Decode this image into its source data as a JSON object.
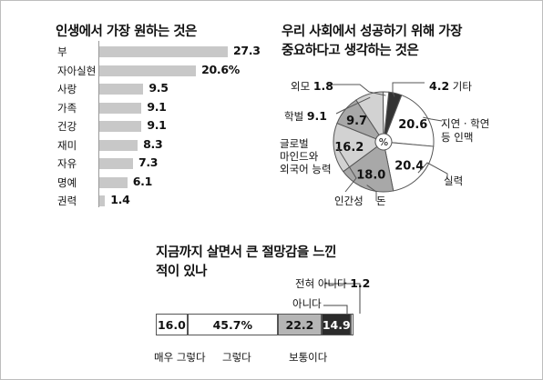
{
  "chart_data": [
    {
      "type": "bar",
      "orientation": "horizontal",
      "title": "인생에서 가장 원하는 것은",
      "categories": [
        "부",
        "자아실현",
        "사랑",
        "가족",
        "건강",
        "재미",
        "자유",
        "명예",
        "권력"
      ],
      "values": [
        27.3,
        20.6,
        9.5,
        9.1,
        9.1,
        8.3,
        7.3,
        6.1,
        1.4
      ],
      "value_labels": [
        "27.3",
        "20.6%",
        "9.5",
        "9.1",
        "9.1",
        "8.3",
        "7.3",
        "6.1",
        "1.4"
      ],
      "xlim": [
        0,
        30
      ],
      "bar_color": "#c8c8c8"
    },
    {
      "type": "pie",
      "style": "donut",
      "title_lines": [
        "우리 사회에서 성공하기 위해 가장",
        "중요하다고 생각하는 것은"
      ],
      "center_label": "%",
      "slices": [
        {
          "label": [
            "4.2 기타"
          ],
          "value": 4.2,
          "text": "",
          "color": "#333333"
        },
        {
          "label": [
            "지연 · 학연",
            "등 인맥"
          ],
          "value": 20.6,
          "text": "20.6",
          "color": "#ffffff"
        },
        {
          "label": [
            "실력"
          ],
          "value": 20.4,
          "text": "20.4",
          "color": "#ffffff"
        },
        {
          "label": [
            "돈"
          ],
          "value": 18.0,
          "text": "18.0",
          "color": "#a8a8a8"
        },
        {
          "label": [
            "인간성"
          ],
          "value": 16.2,
          "text": "16.2",
          "color": "#d2d2d2"
        },
        {
          "label": [
            "글로벌",
            "마인드와",
            "외국어 능력"
          ],
          "value": 9.7,
          "text": "9.7",
          "color": "#a8a8a8"
        },
        {
          "label": [
            "학벌 9.1"
          ],
          "value": 9.1,
          "text": "",
          "color": "#d2d2d2"
        },
        {
          "label": [
            "외모 1.8"
          ],
          "value": 1.8,
          "text": "",
          "color": "#ffffff"
        }
      ]
    },
    {
      "type": "bar",
      "orientation": "stacked-horizontal",
      "title_lines": [
        "지금까지 살면서 큰 절망감을 느낀",
        "적이 있나"
      ],
      "segments": [
        {
          "label": "매우 그렇다",
          "value": 16.0,
          "text": "16.0",
          "color": "#ffffff"
        },
        {
          "label": "그렇다",
          "value": 45.7,
          "text": "45.7%",
          "color": "#ffffff"
        },
        {
          "label": "보통이다",
          "value": 22.2,
          "text": "22.2",
          "color": "#b5b5b5"
        },
        {
          "label": "아니다",
          "value": 14.9,
          "text": "14.9",
          "color": "#2b2b2b"
        },
        {
          "label": "전혀 아니다 1.2",
          "value": 1.2,
          "text": "",
          "color": "#ffffff"
        }
      ]
    }
  ]
}
